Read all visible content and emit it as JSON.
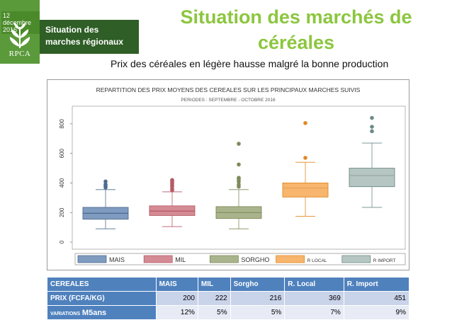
{
  "header": {
    "date": "12 décembre 2016",
    "logo_text": "RPCA",
    "section": [
      "Situation des",
      "marches régionaux"
    ],
    "title_line1": "Situation des marchés de",
    "title_line2": "céréales",
    "subtitle": "Prix des céréales en légère hausse malgré la bonne production"
  },
  "colors": {
    "brand_green": "#5a9a3a",
    "title_green": "#8cc63f",
    "table_header": "#4f81bd"
  },
  "chart_data": {
    "type": "boxplot",
    "title": "REPARTITION DES PRIX MOYENS DES CEREALES SUR LES PRINCIPAUX MARCHES SUIVIS",
    "subtitle": "PERIODES : SEPTEMBRE - OCTOBRE 2016",
    "ylim": [
      0,
      900
    ],
    "yticks": [
      0,
      200,
      400,
      600,
      800
    ],
    "legend_position": "bottom",
    "series": [
      {
        "name": "MAIS",
        "color": "#4f6d8e",
        "box_color": "#7f9bc0",
        "median_color": "#3f5f88",
        "whisker_low": 90,
        "q1": 155,
        "median": 195,
        "q3": 235,
        "whisker_high": 355,
        "outliers": [
          370,
          380,
          390,
          410
        ]
      },
      {
        "name": "MIL",
        "color": "#b55a66",
        "box_color": "#d48b94",
        "median_color": "#b04a56",
        "whisker_low": 105,
        "q1": 180,
        "median": 210,
        "q3": 245,
        "whisker_high": 340,
        "outliers": [
          350,
          360,
          375,
          385,
          395,
          405,
          415,
          420
        ]
      },
      {
        "name": "SORGHO",
        "color": "#7f8a5a",
        "box_color": "#a9b48c",
        "median_color": "#7b8a55",
        "whisker_low": 90,
        "q1": 160,
        "median": 200,
        "q3": 240,
        "whisker_high": 355,
        "outliers": [
          375,
          390,
          410,
          425,
          435,
          525,
          665
        ]
      },
      {
        "name": "R LOCAL",
        "color": "#e08a20",
        "box_color": "#f7b56e",
        "median_color": "#e0a050",
        "whisker_low": 175,
        "q1": 305,
        "median": 365,
        "q3": 400,
        "whisker_high": 540,
        "outliers": [
          570,
          805
        ]
      },
      {
        "name": "R IMPORT",
        "color": "#6d8a88",
        "box_color": "#b6c6c3",
        "median_color": "#8ea09e",
        "whisker_low": 235,
        "q1": 375,
        "median": 450,
        "q3": 500,
        "whisker_high": 670,
        "outliers": [
          750,
          780,
          840
        ]
      }
    ]
  },
  "table": {
    "headers": [
      "CEREALES",
      "MAIS",
      "MIL",
      "Sorgho",
      "R. Local",
      "R. Import"
    ],
    "price_label": "PRIX (FCFA/KG)",
    "prices": [
      "200",
      "222",
      "216",
      "369",
      "451"
    ],
    "variation_label_small": "VARIATIONS",
    "variation_label_big": "M5ans",
    "variations": [
      "12%",
      "5%",
      "5%",
      "7%",
      "9%"
    ]
  }
}
